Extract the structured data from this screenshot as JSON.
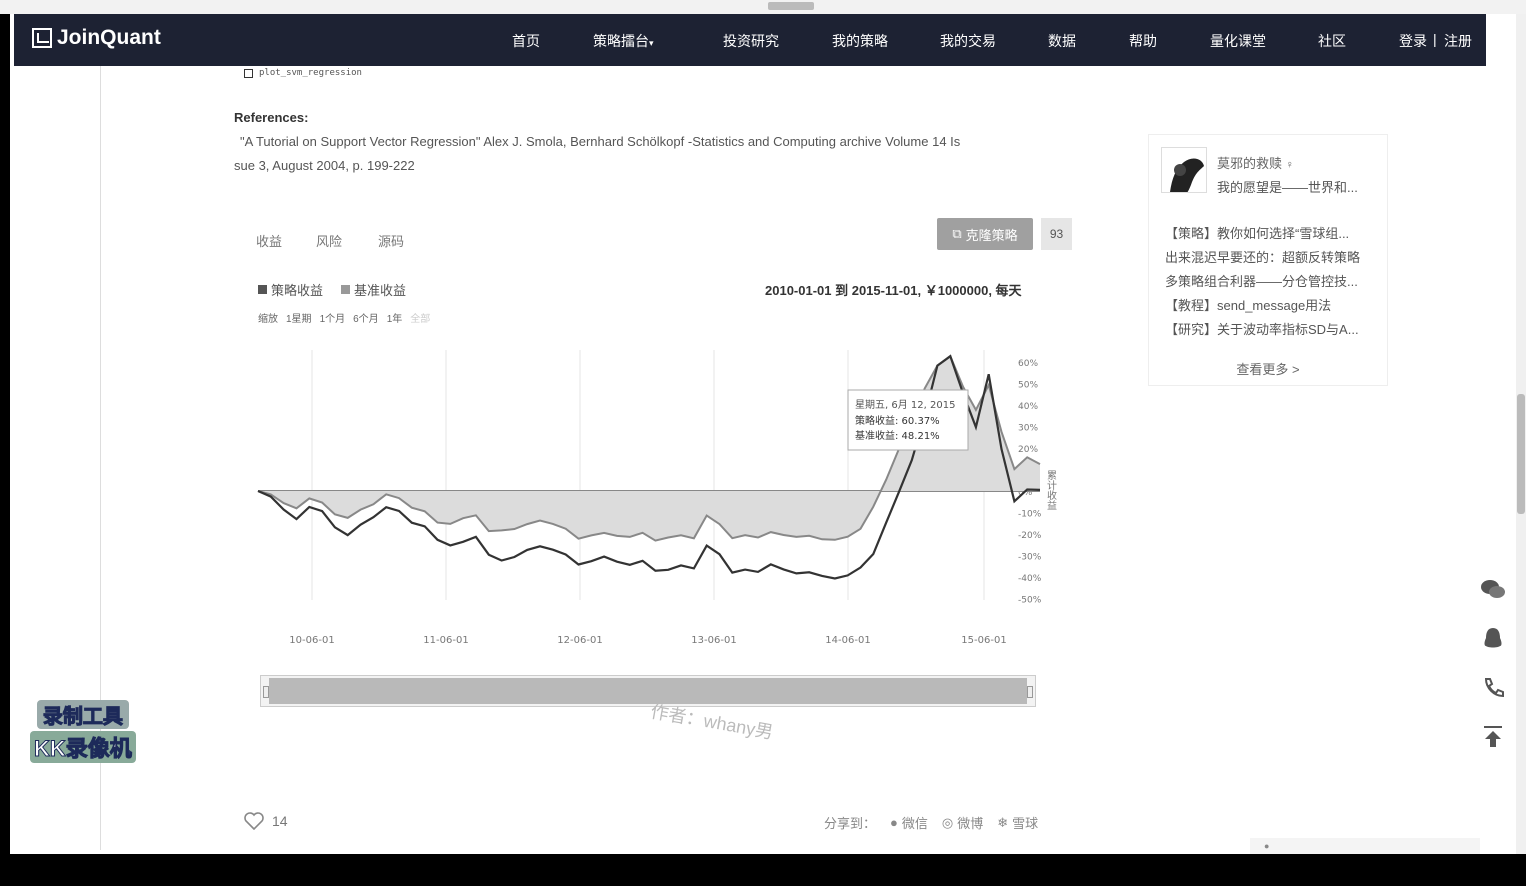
{
  "nav": {
    "brand": "JoinQuant",
    "items": [
      "首页",
      "策略擂台",
      "投资研究",
      "我的策略",
      "我的交易",
      "数据",
      "帮助",
      "量化课堂",
      "社区",
      "登录",
      "注册"
    ]
  },
  "post": {
    "code_ref": "plot_svm_regression",
    "references_title": "References:",
    "ref_line1": "\"A Tutorial on Support Vector Regression\"   Alex J. Smola, Bernhard Schölkopf -Statistics and Computing archive Volume 14 Is",
    "ref_line2": "sue 3, August 2004, p. 199-222"
  },
  "backtest": {
    "tabs": [
      "收益",
      "风险",
      "源码"
    ],
    "clone_label": "克隆策略",
    "clone_count": "93",
    "legend": [
      {
        "name": "策略收益",
        "color": "#555555"
      },
      {
        "name": "基准收益",
        "color": "#999999"
      }
    ],
    "period": "2010-01-01 到 2015-11-01, ￥1000000, 每天",
    "zoom_label": "缩放",
    "zoom_options": [
      "1星期",
      "1个月",
      "6个月",
      "1年",
      "全部"
    ],
    "tooltip": {
      "date": "星期五, 6月 12, 2015",
      "strategy": "策略收益: 60.37%",
      "benchmark": "基准收益: 48.21%"
    },
    "y_axis_title": "累计收益"
  },
  "chart_data": {
    "type": "line",
    "x_ticks": [
      "10-06-01",
      "11-06-01",
      "12-06-01",
      "13-06-01",
      "14-06-01",
      "15-06-01"
    ],
    "y_ticks": [
      "60%",
      "50%",
      "40%",
      "30%",
      "20%",
      "10%",
      "0%",
      "-10%",
      "-20%",
      "-30%",
      "-40%",
      "-50%"
    ],
    "ylim": [
      -50,
      65
    ],
    "series": [
      {
        "name": "策略收益",
        "values": [
          0,
          -2,
          -8,
          -13,
          -8,
          -10,
          -17,
          -20,
          -15,
          -12,
          -8,
          -10,
          -15,
          -16,
          -22,
          -25,
          -24,
          -22,
          -30,
          -32,
          -30,
          -27,
          -26,
          -28,
          -30,
          -34,
          -32,
          -30,
          -33,
          -35,
          -33,
          -37,
          -36,
          -34,
          -36,
          -26,
          -30,
          -38,
          -36,
          -37,
          -34,
          -37,
          -39,
          -38,
          -39,
          -40,
          -39,
          -36,
          -30,
          -15,
          0,
          15,
          35,
          58,
          62,
          45,
          30,
          55,
          20,
          -5,
          0,
          0
        ]
      },
      {
        "name": "基准收益",
        "values": [
          0,
          -1,
          -5,
          -8,
          -4,
          -6,
          -11,
          -12,
          -8,
          -6,
          -2,
          -4,
          -8,
          -9,
          -14,
          -15,
          -13,
          -12,
          -19,
          -18,
          -17,
          -15,
          -14,
          -16,
          -18,
          -22,
          -20,
          -19,
          -21,
          -22,
          -20,
          -23,
          -21,
          -20,
          -22,
          -12,
          -16,
          -22,
          -20,
          -21,
          -19,
          -21,
          -22,
          -21,
          -22,
          -22,
          -21,
          -18,
          -8,
          5,
          20,
          30,
          48,
          58,
          62,
          48,
          38,
          50,
          28,
          10,
          15,
          12
        ]
      }
    ]
  },
  "watermark": "作者：whany男",
  "recorder": {
    "line1": "录制工具",
    "line2": "KK录像机"
  },
  "actions": {
    "likes": "14",
    "share_label": "分享到：",
    "share_items": [
      "微信",
      "微博",
      "雪球"
    ]
  },
  "sidebar": {
    "user_name": "莫邪的救赎",
    "user_sig": "我的愿望是——世界和...",
    "posts": [
      "【策略】教你如何选择“雪球组...",
      "出来混迟早要还的：超额反转策略",
      "多策略组合利器——分仓管控技...",
      "【教程】send_message用法",
      "【研究】关于波动率指标SD与A..."
    ],
    "more": "查看更多 >"
  }
}
